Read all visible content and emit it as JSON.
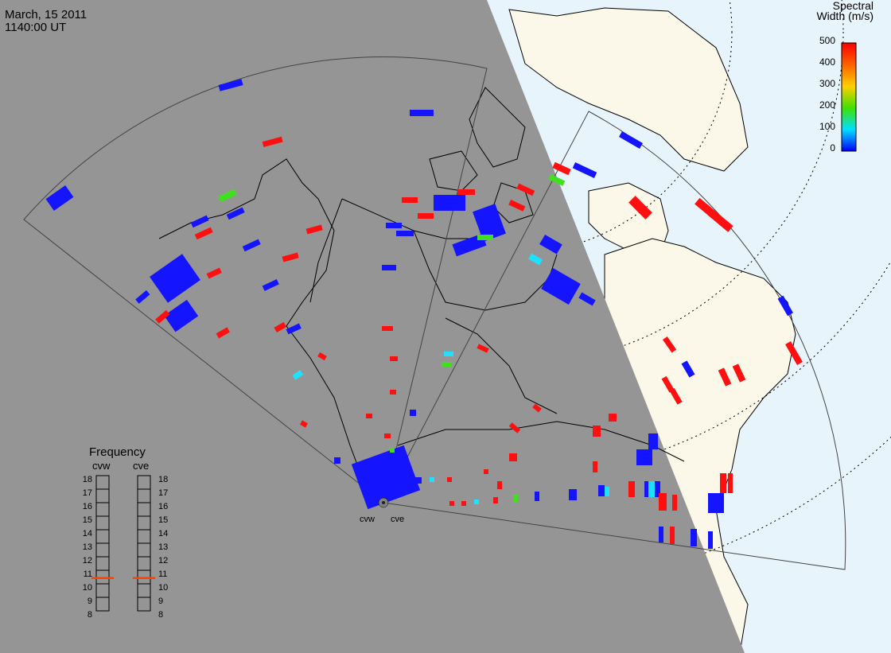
{
  "title": {
    "date": "March, 15 2011",
    "time": "1140:00 UT"
  },
  "colorbar": {
    "title_line1": "Spectral",
    "title_line2": "Width (m/s)",
    "ticks": [
      "500",
      "400",
      "300",
      "200",
      "100",
      "0"
    ],
    "colors": [
      "#ff0000",
      "#ff8000",
      "#ffff00",
      "#00ff00",
      "#00ffff",
      "#0000ff"
    ]
  },
  "radars": {
    "west_label": "cvw",
    "east_label": "cve"
  },
  "frequency_panel": {
    "title": "Frequency",
    "col_west": "cvw",
    "col_east": "cve",
    "ticks": [
      "18",
      "17",
      "16",
      "15",
      "14",
      "13",
      "12",
      "11",
      "10",
      "9",
      "8"
    ],
    "west_value_mhz": 10.9,
    "east_value_mhz": 10.9,
    "marker_color": "#ff4000"
  },
  "colors": {
    "night_shade": "#959595",
    "day_ocean": "#e8f4fc",
    "day_land": "#fbf8ea",
    "echo_blue": "#1414ff",
    "echo_red": "#ff1010",
    "echo_green": "#40e020",
    "echo_cyan": "#20e0ff"
  }
}
